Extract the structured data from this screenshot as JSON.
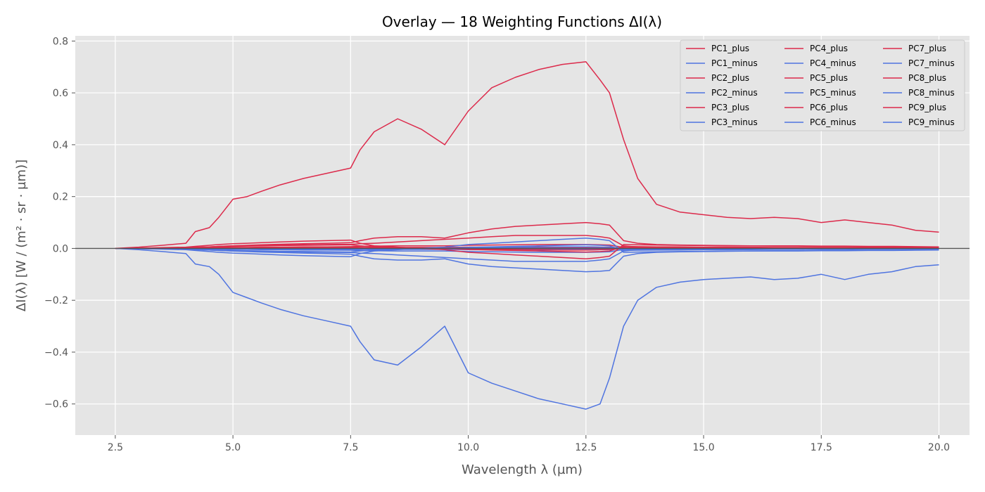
{
  "chart_data": {
    "type": "line",
    "title": "Overlay — 18 Weighting Functions ΔI(λ)",
    "xlabel": "Wavelength λ (µm)",
    "ylabel": "ΔI(λ) [W / (m² · sr · µm)]",
    "xlim": [
      1.65,
      20.65
    ],
    "ylim": [
      -0.72,
      0.82
    ],
    "xticks": [
      2.5,
      5.0,
      7.5,
      10.0,
      12.5,
      15.0,
      17.5,
      20.0
    ],
    "xtick_labels": [
      "2.5",
      "5.0",
      "7.5",
      "10.0",
      "12.5",
      "15.0",
      "17.5",
      "20.0"
    ],
    "yticks": [
      -0.6,
      -0.4,
      -0.2,
      0.0,
      0.2,
      0.4,
      0.6,
      0.8
    ],
    "ytick_labels": [
      "−0.6",
      "−0.4",
      "−0.2",
      "0.0",
      "0.2",
      "0.4",
      "0.6",
      "0.8"
    ],
    "grid": true,
    "zero_line": true,
    "legend_position": "top-right",
    "legend_columns": 3,
    "colors": {
      "plus": "#dc2a4b",
      "minus": "#4f74e0",
      "background": "#e5e5e5",
      "grid": "#ffffff",
      "zero_line": "#555555"
    },
    "x": [
      2.5,
      3.0,
      3.5,
      4.0,
      4.2,
      4.5,
      4.7,
      5.0,
      5.3,
      5.6,
      6.0,
      6.5,
      7.0,
      7.5,
      7.7,
      8.0,
      8.5,
      9.0,
      9.5,
      10.0,
      10.5,
      11.0,
      11.5,
      12.0,
      12.5,
      12.8,
      13.0,
      13.3,
      13.6,
      14.0,
      14.5,
      15.0,
      15.5,
      16.0,
      16.5,
      17.0,
      17.5,
      18.0,
      18.5,
      19.0,
      19.5,
      20.0
    ],
    "series": [
      {
        "name": "PC1_plus",
        "kind": "plus",
        "values": [
          0.0,
          0.005,
          0.012,
          0.02,
          0.065,
          0.08,
          0.12,
          0.19,
          0.2,
          0.22,
          0.245,
          0.27,
          0.29,
          0.31,
          0.38,
          0.45,
          0.5,
          0.46,
          0.4,
          0.53,
          0.62,
          0.66,
          0.69,
          0.71,
          0.72,
          0.65,
          0.6,
          0.42,
          0.27,
          0.17,
          0.14,
          0.13,
          0.12,
          0.115,
          0.12,
          0.115,
          0.1,
          0.11,
          0.1,
          0.09,
          0.07,
          0.063
        ]
      },
      {
        "name": "PC1_minus",
        "kind": "minus",
        "values": [
          0.0,
          -0.005,
          -0.012,
          -0.02,
          -0.06,
          -0.07,
          -0.1,
          -0.17,
          -0.19,
          -0.21,
          -0.235,
          -0.26,
          -0.28,
          -0.3,
          -0.36,
          -0.43,
          -0.45,
          -0.38,
          -0.3,
          -0.48,
          -0.52,
          -0.55,
          -0.58,
          -0.6,
          -0.62,
          -0.6,
          -0.5,
          -0.3,
          -0.2,
          -0.15,
          -0.13,
          -0.12,
          -0.115,
          -0.11,
          -0.12,
          -0.115,
          -0.1,
          -0.12,
          -0.1,
          -0.09,
          -0.07,
          -0.063
        ]
      },
      {
        "name": "PC2_plus",
        "kind": "plus",
        "values": [
          0.0,
          0.001,
          0.002,
          0.003,
          0.004,
          0.006,
          0.008,
          0.01,
          0.012,
          0.014,
          0.016,
          0.018,
          0.02,
          0.022,
          0.03,
          0.04,
          0.045,
          0.045,
          0.04,
          0.06,
          0.075,
          0.085,
          0.09,
          0.095,
          0.1,
          0.095,
          0.09,
          0.03,
          0.02,
          0.015,
          0.013,
          0.012,
          0.011,
          0.01,
          0.01,
          0.01,
          0.009,
          0.009,
          0.008,
          0.008,
          0.007,
          0.006
        ]
      },
      {
        "name": "PC2_minus",
        "kind": "minus",
        "values": [
          0.0,
          -0.001,
          -0.002,
          -0.003,
          -0.004,
          -0.006,
          -0.008,
          -0.01,
          -0.012,
          -0.014,
          -0.016,
          -0.018,
          -0.02,
          -0.022,
          -0.03,
          -0.04,
          -0.045,
          -0.045,
          -0.04,
          -0.06,
          -0.07,
          -0.075,
          -0.08,
          -0.085,
          -0.09,
          -0.088,
          -0.085,
          -0.03,
          -0.02,
          -0.015,
          -0.013,
          -0.012,
          -0.011,
          -0.01,
          -0.01,
          -0.01,
          -0.009,
          -0.009,
          -0.008,
          -0.008,
          -0.007,
          -0.006
        ]
      },
      {
        "name": "PC3_plus",
        "kind": "plus",
        "values": [
          0.0,
          0.001,
          0.002,
          0.003,
          0.005,
          0.006,
          0.008,
          0.01,
          0.011,
          0.012,
          0.013,
          0.014,
          0.015,
          0.016,
          0.018,
          0.02,
          0.025,
          0.03,
          0.035,
          0.04,
          0.045,
          0.05,
          0.05,
          0.05,
          0.05,
          0.045,
          0.04,
          0.01,
          0.005,
          0.004,
          0.004,
          0.003,
          0.003,
          0.003,
          0.003,
          0.003,
          0.002,
          0.002,
          0.002,
          0.002,
          0.002,
          0.002
        ]
      },
      {
        "name": "PC3_minus",
        "kind": "minus",
        "values": [
          0.0,
          -0.001,
          -0.002,
          -0.003,
          -0.005,
          -0.006,
          -0.008,
          -0.01,
          -0.011,
          -0.012,
          -0.013,
          -0.014,
          -0.015,
          -0.016,
          -0.018,
          -0.02,
          -0.025,
          -0.03,
          -0.035,
          -0.04,
          -0.045,
          -0.05,
          -0.05,
          -0.05,
          -0.05,
          -0.045,
          -0.04,
          -0.01,
          -0.005,
          -0.004,
          -0.004,
          -0.003,
          -0.003,
          -0.003,
          -0.003,
          -0.003,
          -0.002,
          -0.002,
          -0.002,
          -0.002,
          -0.002,
          -0.002
        ]
      },
      {
        "name": "PC4_plus",
        "kind": "plus",
        "values": [
          0.0,
          0.001,
          0.003,
          0.005,
          0.008,
          0.012,
          0.015,
          0.018,
          0.02,
          0.022,
          0.025,
          0.028,
          0.03,
          0.032,
          0.02,
          0.01,
          0.005,
          0.0,
          -0.005,
          -0.015,
          -0.02,
          -0.025,
          -0.03,
          -0.035,
          -0.04,
          -0.035,
          -0.03,
          0.015,
          0.014,
          0.013,
          0.012,
          0.011,
          0.01,
          0.01,
          0.009,
          0.009,
          0.008,
          0.008,
          0.007,
          0.007,
          0.006,
          0.006
        ]
      },
      {
        "name": "PC4_minus",
        "kind": "minus",
        "values": [
          0.0,
          -0.001,
          -0.003,
          -0.005,
          -0.008,
          -0.012,
          -0.015,
          -0.018,
          -0.02,
          -0.022,
          -0.025,
          -0.028,
          -0.03,
          -0.032,
          -0.02,
          -0.01,
          -0.005,
          0.0,
          0.005,
          0.015,
          0.02,
          0.025,
          0.03,
          0.035,
          0.04,
          0.035,
          0.03,
          -0.015,
          -0.014,
          -0.013,
          -0.012,
          -0.011,
          -0.01,
          -0.01,
          -0.009,
          -0.009,
          -0.008,
          -0.008,
          -0.007,
          -0.007,
          -0.006,
          -0.006
        ]
      },
      {
        "name": "PC5_plus",
        "kind": "plus",
        "values": [
          0.0,
          0.001,
          0.002,
          0.003,
          0.004,
          0.005,
          0.006,
          0.008,
          0.009,
          0.01,
          0.011,
          0.012,
          0.013,
          0.014,
          0.01,
          0.006,
          0.004,
          0.002,
          0.0,
          -0.004,
          -0.006,
          -0.008,
          -0.01,
          -0.012,
          -0.014,
          -0.012,
          -0.01,
          0.008,
          0.007,
          0.006,
          0.006,
          0.005,
          0.005,
          0.005,
          0.004,
          0.004,
          0.004,
          0.004,
          0.003,
          0.003,
          0.003,
          0.003
        ]
      },
      {
        "name": "PC5_minus",
        "kind": "minus",
        "values": [
          0.0,
          -0.001,
          -0.002,
          -0.003,
          -0.004,
          -0.005,
          -0.006,
          -0.008,
          -0.009,
          -0.01,
          -0.011,
          -0.012,
          -0.013,
          -0.014,
          -0.01,
          -0.006,
          -0.004,
          -0.002,
          0.0,
          0.004,
          0.006,
          0.008,
          0.01,
          0.012,
          0.014,
          0.012,
          0.01,
          -0.008,
          -0.007,
          -0.006,
          -0.006,
          -0.005,
          -0.005,
          -0.005,
          -0.004,
          -0.004,
          -0.004,
          -0.004,
          -0.003,
          -0.003,
          -0.003,
          -0.003
        ]
      },
      {
        "name": "PC6_plus",
        "kind": "plus",
        "values": [
          0.0,
          0.0,
          0.001,
          0.001,
          0.002,
          0.002,
          0.003,
          0.004,
          0.004,
          0.005,
          0.005,
          0.006,
          0.006,
          0.007,
          0.008,
          0.009,
          0.01,
          0.01,
          0.01,
          0.012,
          0.013,
          0.014,
          0.015,
          0.015,
          0.015,
          0.014,
          0.013,
          0.004,
          0.003,
          0.003,
          0.003,
          0.002,
          0.002,
          0.002,
          0.002,
          0.002,
          0.002,
          0.002,
          0.001,
          0.001,
          0.001,
          0.001
        ]
      },
      {
        "name": "PC6_minus",
        "kind": "minus",
        "values": [
          0.0,
          0.0,
          -0.001,
          -0.001,
          -0.002,
          -0.002,
          -0.003,
          -0.004,
          -0.004,
          -0.005,
          -0.005,
          -0.006,
          -0.006,
          -0.007,
          -0.008,
          -0.009,
          -0.01,
          -0.01,
          -0.01,
          -0.012,
          -0.013,
          -0.014,
          -0.015,
          -0.015,
          -0.015,
          -0.014,
          -0.013,
          -0.004,
          -0.003,
          -0.003,
          -0.003,
          -0.002,
          -0.002,
          -0.002,
          -0.002,
          -0.002,
          -0.002,
          -0.002,
          -0.001,
          -0.001,
          -0.001,
          -0.001
        ]
      },
      {
        "name": "PC7_plus",
        "kind": "plus",
        "values": [
          0.0,
          0.0,
          0.001,
          0.001,
          0.001,
          0.002,
          0.002,
          0.003,
          0.003,
          0.003,
          0.004,
          0.004,
          0.004,
          0.005,
          0.004,
          0.003,
          0.002,
          0.001,
          0.0,
          -0.002,
          -0.003,
          -0.004,
          -0.005,
          -0.006,
          -0.006,
          -0.005,
          -0.004,
          0.002,
          0.002,
          0.002,
          0.002,
          0.002,
          0.001,
          0.001,
          0.001,
          0.001,
          0.001,
          0.001,
          0.001,
          0.001,
          0.001,
          0.001
        ]
      },
      {
        "name": "PC7_minus",
        "kind": "minus",
        "values": [
          0.0,
          0.0,
          -0.001,
          -0.001,
          -0.001,
          -0.002,
          -0.002,
          -0.003,
          -0.003,
          -0.003,
          -0.004,
          -0.004,
          -0.004,
          -0.005,
          -0.004,
          -0.003,
          -0.002,
          -0.001,
          0.0,
          0.002,
          0.003,
          0.004,
          0.005,
          0.006,
          0.006,
          0.005,
          0.004,
          -0.002,
          -0.002,
          -0.002,
          -0.002,
          -0.002,
          -0.001,
          -0.001,
          -0.001,
          -0.001,
          -0.001,
          -0.001,
          -0.001,
          -0.001,
          -0.001,
          -0.001
        ]
      },
      {
        "name": "PC8_plus",
        "kind": "plus",
        "values": [
          0.0,
          0.0,
          0.0,
          0.001,
          0.001,
          0.001,
          0.001,
          0.002,
          0.002,
          0.002,
          0.002,
          0.003,
          0.003,
          0.003,
          0.003,
          0.004,
          0.004,
          0.004,
          0.004,
          0.005,
          0.005,
          0.005,
          0.006,
          0.006,
          0.006,
          0.005,
          0.005,
          0.001,
          0.001,
          0.001,
          0.001,
          0.001,
          0.001,
          0.001,
          0.001,
          0.001,
          0.001,
          0.001,
          0.0,
          0.0,
          0.0,
          0.0
        ]
      },
      {
        "name": "PC8_minus",
        "kind": "minus",
        "values": [
          0.0,
          0.0,
          0.0,
          -0.001,
          -0.001,
          -0.001,
          -0.001,
          -0.002,
          -0.002,
          -0.002,
          -0.002,
          -0.003,
          -0.003,
          -0.003,
          -0.003,
          -0.004,
          -0.004,
          -0.004,
          -0.004,
          -0.005,
          -0.005,
          -0.005,
          -0.006,
          -0.006,
          -0.006,
          -0.005,
          -0.005,
          -0.001,
          -0.001,
          -0.001,
          -0.001,
          -0.001,
          -0.001,
          -0.001,
          -0.001,
          -0.001,
          -0.001,
          -0.001,
          0.0,
          0.0,
          0.0,
          0.0
        ]
      },
      {
        "name": "PC9_plus",
        "kind": "plus",
        "values": [
          0.0,
          0.0,
          0.0,
          0.0,
          0.001,
          0.001,
          0.001,
          0.001,
          0.001,
          0.001,
          0.002,
          0.002,
          0.002,
          0.002,
          0.002,
          0.002,
          0.002,
          0.002,
          0.002,
          0.002,
          0.003,
          0.003,
          0.003,
          0.003,
          0.003,
          0.003,
          0.003,
          0.001,
          0.001,
          0.001,
          0.001,
          0.0,
          0.0,
          0.0,
          0.0,
          0.0,
          0.0,
          0.0,
          0.0,
          0.0,
          0.0,
          0.0
        ]
      },
      {
        "name": "PC9_minus",
        "kind": "minus",
        "values": [
          0.0,
          0.0,
          0.0,
          0.0,
          -0.001,
          -0.001,
          -0.001,
          -0.001,
          -0.001,
          -0.001,
          -0.002,
          -0.002,
          -0.002,
          -0.002,
          -0.002,
          -0.002,
          -0.002,
          -0.002,
          -0.002,
          -0.002,
          -0.003,
          -0.003,
          -0.003,
          -0.003,
          -0.003,
          -0.003,
          -0.003,
          -0.001,
          -0.001,
          -0.001,
          -0.001,
          0.0,
          0.0,
          0.0,
          0.0,
          0.0,
          0.0,
          0.0,
          0.0,
          0.0,
          0.0,
          0.0
        ]
      }
    ]
  }
}
